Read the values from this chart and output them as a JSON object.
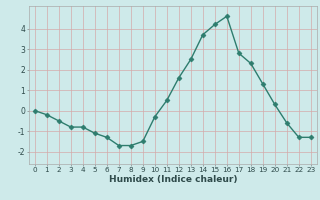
{
  "x": [
    0,
    1,
    2,
    3,
    4,
    5,
    6,
    7,
    8,
    9,
    10,
    11,
    12,
    13,
    14,
    15,
    16,
    17,
    18,
    19,
    20,
    21,
    22,
    23
  ],
  "y": [
    0.0,
    -0.2,
    -0.5,
    -0.8,
    -0.8,
    -1.1,
    -1.3,
    -1.7,
    -1.7,
    -1.5,
    -0.3,
    0.5,
    1.6,
    2.5,
    3.7,
    4.2,
    4.6,
    2.8,
    2.3,
    1.3,
    0.3,
    -0.6,
    -1.3,
    -1.3
  ],
  "line_color": "#2e7d6e",
  "marker": "D",
  "markersize": 2.5,
  "linewidth": 1.0,
  "xlabel": "Humidex (Indice chaleur)",
  "xlim": [
    -0.5,
    23.5
  ],
  "ylim": [
    -2.6,
    5.1
  ],
  "yticks": [
    -2,
    -1,
    0,
    1,
    2,
    3,
    4
  ],
  "xticks": [
    0,
    1,
    2,
    3,
    4,
    5,
    6,
    7,
    8,
    9,
    10,
    11,
    12,
    13,
    14,
    15,
    16,
    17,
    18,
    19,
    20,
    21,
    22,
    23
  ],
  "xtick_labels": [
    "0",
    "1",
    "2",
    "3",
    "4",
    "5",
    "6",
    "7",
    "8",
    "9",
    "10",
    "11",
    "12",
    "13",
    "14",
    "15",
    "16",
    "17",
    "18",
    "19",
    "20",
    "21",
    "22",
    "23"
  ],
  "bg_color": "#ceeaea",
  "grid_color_v": "#d4aaaa",
  "grid_color_h": "#d4aaaa",
  "tick_color": "#2e4a4a",
  "xlabel_fontsize": 6.5,
  "tick_fontsize": 5.2
}
